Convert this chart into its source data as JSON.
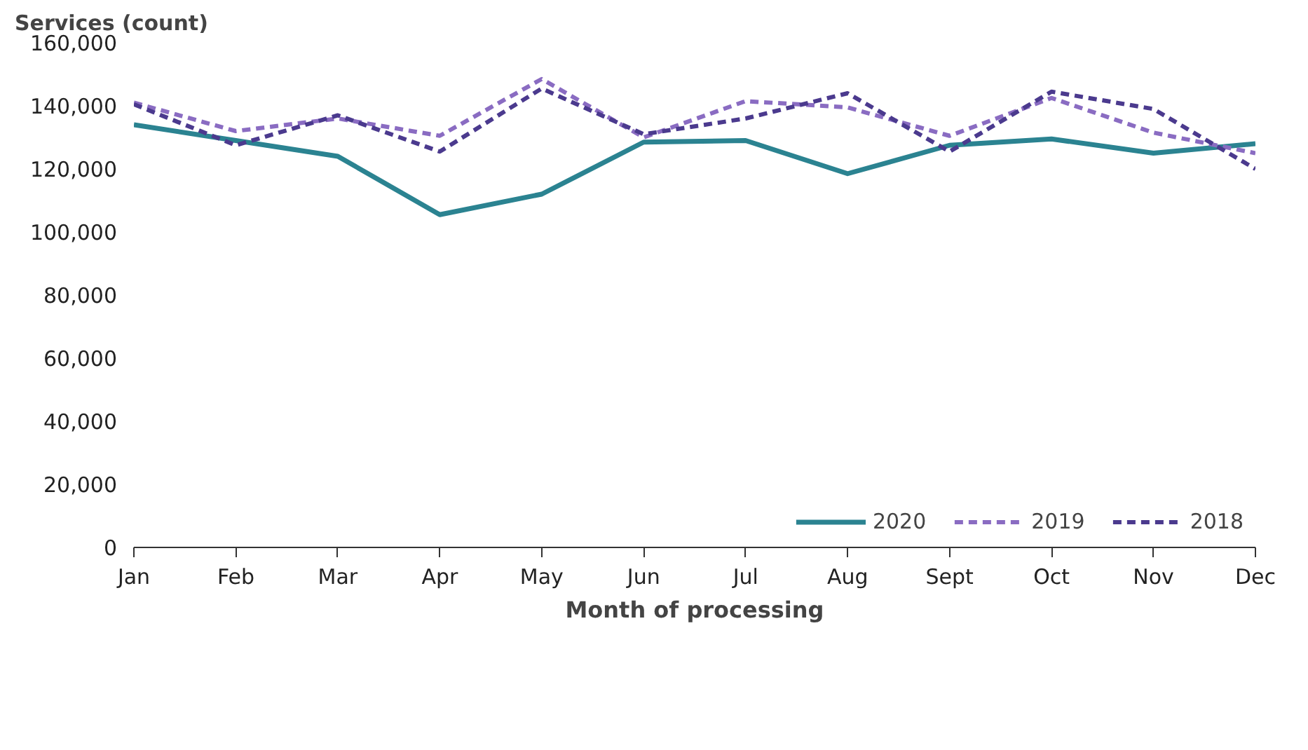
{
  "chart_data": {
    "type": "line",
    "ylabel": "Services (count)",
    "xlabel": "Month of processing",
    "categories": [
      "Jan",
      "Feb",
      "Mar",
      "Apr",
      "May",
      "Jun",
      "Jul",
      "Aug",
      "Sept",
      "Oct",
      "Nov",
      "Dec"
    ],
    "series": [
      {
        "name": "2020",
        "color": "#2b8391",
        "line_style": "solid",
        "values": [
          134000,
          129000,
          124000,
          105500,
          112000,
          128500,
          129000,
          118500,
          127500,
          129500,
          125000,
          128000
        ]
      },
      {
        "name": "2019",
        "color": "#8a6cc2",
        "line_style": "dashed",
        "values": [
          141000,
          132000,
          136000,
          130500,
          148500,
          130000,
          141500,
          139500,
          130500,
          142500,
          131500,
          125000
        ]
      },
      {
        "name": "2018",
        "color": "#4b3a8e",
        "line_style": "dashed",
        "values": [
          140500,
          127500,
          137000,
          125500,
          145500,
          131000,
          136000,
          144000,
          125500,
          144500,
          139000,
          120000
        ]
      }
    ],
    "ylim": [
      0,
      160000
    ],
    "yticks": [
      {
        "value": 0,
        "label": "0"
      },
      {
        "value": 20000,
        "label": "20,000"
      },
      {
        "value": 40000,
        "label": "40,000"
      },
      {
        "value": 60000,
        "label": "60,000"
      },
      {
        "value": 80000,
        "label": "80,000"
      },
      {
        "value": 100000,
        "label": "100,000"
      },
      {
        "value": 120000,
        "label": "120,000"
      },
      {
        "value": 140000,
        "label": "140,000"
      },
      {
        "value": 160000,
        "label": "160,000"
      }
    ],
    "grid": false,
    "legend": "bottom right",
    "marker": "none"
  }
}
